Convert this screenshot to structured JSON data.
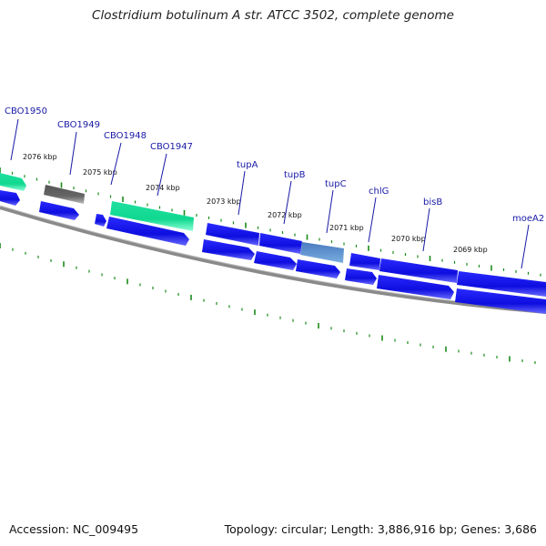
{
  "title": "Clostridium botulinum A str. ATCC 3502, complete genome",
  "accession": "Accession: NC_009495",
  "summary": "Topology: circular; Length: 3,886,916 bp; Genes: 3,686",
  "colors": {
    "cds": "#1010e6",
    "cds_light": "#5a5aff",
    "rrna": "#1de8a0",
    "pseudo": "#666666",
    "highlight": "#5a8fc8",
    "backbone": "#8a8a8a",
    "gc_tick": "#1a8a1a",
    "label_line": "#1a1aa6"
  },
  "kbp_labels": [
    "2076 kbp",
    "2075 kbp",
    "2074 kbp",
    "2073 kbp",
    "2072 kbp",
    "2071 kbp",
    "2070 kbp",
    "2069 kbp"
  ],
  "genes": [
    "CBO1950",
    "CBO1949",
    "CBO1948",
    "CBO1947",
    "tupA",
    "tupB",
    "tupC",
    "chlG",
    "bisB",
    "moeA2"
  ]
}
